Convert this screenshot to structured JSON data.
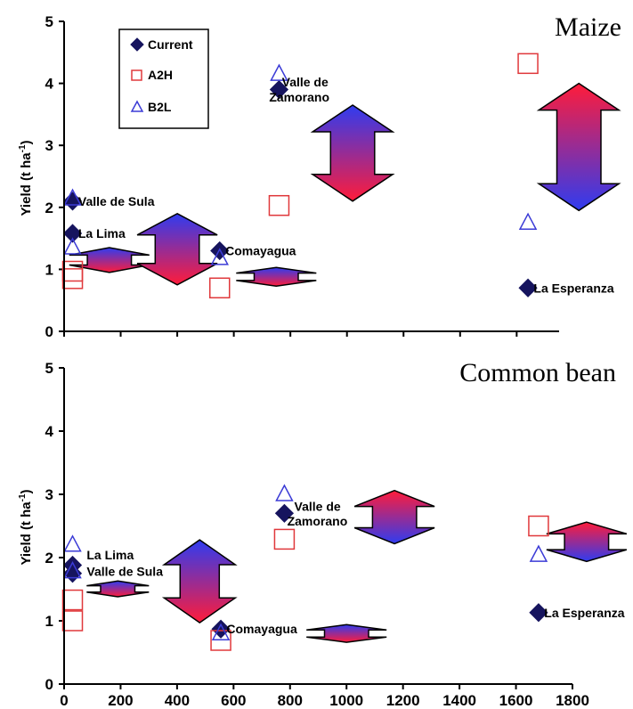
{
  "chart_data": [
    {
      "type": "scatter",
      "title": "Maize",
      "ylabel": "Yield (t ha",
      "ylabel_sup": "-1",
      "ylim": [
        0,
        5
      ],
      "yticks": [
        "0",
        "1",
        "2",
        "3",
        "4",
        "5"
      ],
      "xlim": [
        0,
        1800
      ],
      "legend": {
        "position": "top-left",
        "items": [
          {
            "name": "Current",
            "marker": "diamond",
            "color": "#16145e"
          },
          {
            "name": "A2H",
            "marker": "square",
            "color": "#e0383b"
          },
          {
            "name": "B2L",
            "marker": "triangle",
            "color": "#3b3bd6"
          }
        ]
      },
      "series": [
        {
          "name": "Current",
          "points": [
            {
              "x": 30,
              "y": 2.1
            },
            {
              "x": 30,
              "y": 1.58
            },
            {
              "x": 550,
              "y": 1.3
            },
            {
              "x": 760,
              "y": 3.9
            },
            {
              "x": 1640,
              "y": 0.7
            }
          ]
        },
        {
          "name": "A2H",
          "points": [
            {
              "x": 30,
              "y": 0.97
            },
            {
              "x": 30,
              "y": 0.85
            },
            {
              "x": 550,
              "y": 0.7
            },
            {
              "x": 760,
              "y": 2.03
            },
            {
              "x": 1640,
              "y": 4.32
            }
          ]
        },
        {
          "name": "B2L",
          "points": [
            {
              "x": 30,
              "y": 2.14
            },
            {
              "x": 30,
              "y": 1.35
            },
            {
              "x": 550,
              "y": 1.18
            },
            {
              "x": 760,
              "y": 4.15
            },
            {
              "x": 1640,
              "y": 1.75
            }
          ]
        }
      ],
      "sites": [
        {
          "text": "Valle de Sula",
          "x": 50,
          "y": 2.1
        },
        {
          "text": "La Lima",
          "x": 50,
          "y": 1.58
        },
        {
          "text": "Comayagua",
          "x": 570,
          "y": 1.3
        },
        {
          "text": "Valle de",
          "x": 770,
          "y": 4.02
        },
        {
          "text": "Zamorano",
          "x": 725,
          "y": 3.78
        },
        {
          "text": "La Esperanza",
          "x": 1660,
          "y": 0.7
        }
      ],
      "arrows": [
        {
          "x": 160,
          "y1": 0.95,
          "y2": 1.35,
          "top": "blue",
          "width": 90
        },
        {
          "x": 400,
          "y1": 0.75,
          "y2": 1.9,
          "top": "blue",
          "width": 90
        },
        {
          "x": 750,
          "y1": 0.73,
          "y2": 1.03,
          "top": "blue",
          "width": 90
        },
        {
          "x": 1020,
          "y1": 2.1,
          "y2": 3.65,
          "top": "blue",
          "width": 90
        },
        {
          "x": 1820,
          "y1": 1.95,
          "y2": 4.0,
          "top": "red",
          "width": 90
        }
      ]
    },
    {
      "type": "scatter",
      "title": "Common bean",
      "ylabel": "Yield (t ha",
      "ylabel_sup": "-1",
      "ylim": [
        0,
        5
      ],
      "yticks": [
        "0",
        "1",
        "2",
        "3",
        "4",
        "5"
      ],
      "xlim": [
        0,
        1800
      ],
      "xticks": [
        "0",
        "200",
        "400",
        "600",
        "800",
        "1000",
        "1200",
        "1400",
        "1600",
        "1800"
      ],
      "series": [
        {
          "name": "Current",
          "points": [
            {
              "x": 30,
              "y": 1.88
            },
            {
              "x": 30,
              "y": 1.75
            },
            {
              "x": 555,
              "y": 0.87
            },
            {
              "x": 780,
              "y": 2.7
            },
            {
              "x": 1680,
              "y": 1.13
            }
          ]
        },
        {
          "name": "A2H",
          "points": [
            {
              "x": 30,
              "y": 1.33
            },
            {
              "x": 30,
              "y": 1.0
            },
            {
              "x": 555,
              "y": 0.69
            },
            {
              "x": 780,
              "y": 2.29
            },
            {
              "x": 1680,
              "y": 2.5
            }
          ]
        },
        {
          "name": "B2L",
          "points": [
            {
              "x": 30,
              "y": 2.2
            },
            {
              "x": 30,
              "y": 1.78
            },
            {
              "x": 555,
              "y": 0.8
            },
            {
              "x": 780,
              "y": 3.0
            },
            {
              "x": 1680,
              "y": 2.04
            }
          ]
        }
      ],
      "sites": [
        {
          "text": "La Lima",
          "x": 80,
          "y": 2.04
        },
        {
          "text": "Valle de Sula",
          "x": 80,
          "y": 1.78
        },
        {
          "text": "Comayagua",
          "x": 575,
          "y": 0.87
        },
        {
          "text": "Valle de",
          "x": 815,
          "y": 2.81
        },
        {
          "text": "Zamorano",
          "x": 790,
          "y": 2.58
        },
        {
          "text": "La Esperanza",
          "x": 1700,
          "y": 1.13
        }
      ],
      "arrows": [
        {
          "x": 190,
          "y1": 1.38,
          "y2": 1.63,
          "top": "blue",
          "width": 70
        },
        {
          "x": 480,
          "y1": 0.97,
          "y2": 2.28,
          "top": "blue",
          "width": 80
        },
        {
          "x": 1000,
          "y1": 0.66,
          "y2": 0.94,
          "top": "blue",
          "width": 90
        },
        {
          "x": 1170,
          "y1": 2.22,
          "y2": 3.06,
          "top": "red",
          "width": 90
        },
        {
          "x": 1850,
          "y1": 1.94,
          "y2": 2.56,
          "top": "red",
          "width": 90
        }
      ]
    }
  ]
}
